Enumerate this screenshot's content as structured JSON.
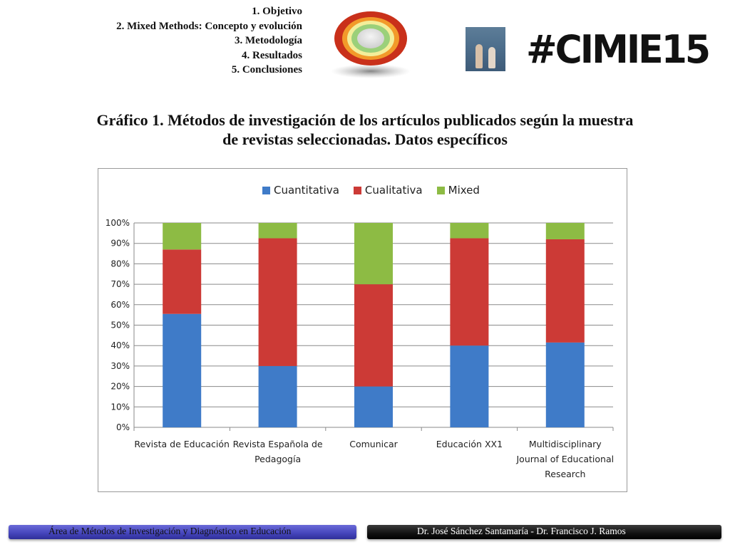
{
  "menu": {
    "items": [
      "1.   Objetivo",
      "2.   Mixed Methods: Concepto y evolución",
      "3.   Metodología",
      "4. Resultados",
      "5. Conclusiones"
    ]
  },
  "hashtag": "#CIMIE15",
  "title_line1": "Gráfico 1. Métodos de investigación de los artículos publicados según la muestra",
  "title_line2": "de revistas seleccionadas. Datos específicos",
  "colors": {
    "cuantitativa": "#3f7bc8",
    "cualitativa": "#cc3a36",
    "mixed": "#8dbb44",
    "footer_left": "#4444bb",
    "footer_right": "#111111"
  },
  "icons": {
    "logo": "ring-logo-icon",
    "photo": "photo-thumbnail"
  },
  "chart_data": {
    "type": "bar",
    "stacked": true,
    "categories": [
      [
        "Revista de Educación"
      ],
      [
        "Revista Española de",
        "Pedagogía"
      ],
      [
        "Comunicar"
      ],
      [
        "Educación XX1"
      ],
      [
        "Multidisciplinary",
        "Journal of Educational",
        "Research"
      ]
    ],
    "series": [
      {
        "name": "Cuantitativa",
        "values": [
          55.5,
          30,
          20,
          40,
          41.5
        ]
      },
      {
        "name": "Cualitativa",
        "values": [
          31.5,
          62.5,
          50,
          52.5,
          50.5
        ]
      },
      {
        "name": "Mixed",
        "values": [
          13,
          7.5,
          30,
          7.5,
          8
        ]
      }
    ],
    "yticks": [
      "0%",
      "10%",
      "20%",
      "30%",
      "40%",
      "50%",
      "60%",
      "70%",
      "80%",
      "90%",
      "100%"
    ],
    "ylim": [
      0,
      100
    ],
    "grid": true,
    "legend_position": "top"
  },
  "footer": {
    "left": "Área de Métodos de Investigación y Diagnóstico en Educación",
    "right": "Dr. José Sánchez Santamaría  - Dr. Francisco J. Ramos"
  }
}
